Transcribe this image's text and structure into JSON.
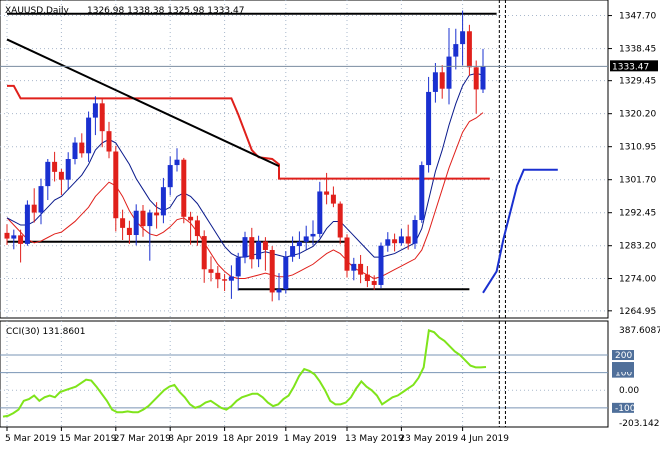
{
  "header": {
    "symbol": "XAUUSD,Daily",
    "ohlc": "1326.98 1338.38 1325.98 1333.47"
  },
  "chart_data": [
    {
      "type": "candlestick",
      "title": "XAUUSD,Daily",
      "ylim": [
        1263.5,
        1351.5
      ],
      "y_ticks": [
        1347.7,
        1338.45,
        1329.45,
        1320.2,
        1310.95,
        1301.7,
        1292.45,
        1283.2,
        1274.0,
        1264.95
      ],
      "y_tick_labels": [
        "1347.70",
        "1338.45",
        "1329.45",
        "1320.20",
        "1310.95",
        "1301.70",
        "1292.45",
        "1283.20",
        "1274.00",
        "1264.95"
      ],
      "current_price": 1333.47,
      "current_price_label": "1333.47",
      "x_labels": [
        "5 Mar 2019",
        "15 Mar 2019",
        "27 Mar 2019",
        "8 Apr 2019",
        "18 Apr 2019",
        "1 May 2019",
        "13 May 2019",
        "23 May 2019",
        "4 Jun 2019"
      ],
      "x_label_bars": [
        0,
        8,
        16,
        24,
        32,
        41,
        50,
        58,
        67
      ],
      "grid": true,
      "candles": [
        [
          1286.8,
          1289.2,
          1283.4,
          1285.2
        ],
        [
          1285.2,
          1287.7,
          1282.2,
          1286.1
        ],
        [
          1286.1,
          1287.7,
          1278.5,
          1283.7
        ],
        [
          1283.7,
          1295.9,
          1283.2,
          1294.7
        ],
        [
          1294.7,
          1299.3,
          1289.7,
          1292.5
        ],
        [
          1292.5,
          1302.0,
          1289.2,
          1299.9
        ],
        [
          1299.9,
          1307.5,
          1296.0,
          1306.7
        ],
        [
          1306.7,
          1309.5,
          1301.2,
          1303.9
        ],
        [
          1303.9,
          1304.7,
          1297.4,
          1301.7
        ],
        [
          1301.7,
          1309.4,
          1298.8,
          1307.5
        ],
        [
          1307.5,
          1313.6,
          1306.0,
          1312.1
        ],
        [
          1312.1,
          1314.7,
          1307.9,
          1309.1
        ],
        [
          1309.1,
          1320.8,
          1306.7,
          1319.1
        ],
        [
          1319.1,
          1325.1,
          1314.2,
          1323.1
        ],
        [
          1323.1,
          1324.4,
          1310.8,
          1315.3
        ],
        [
          1315.3,
          1317.9,
          1307.7,
          1309.6
        ],
        [
          1309.6,
          1311.2,
          1287.2,
          1290.9
        ],
        [
          1290.9,
          1293.3,
          1284.8,
          1288.2
        ],
        [
          1288.2,
          1290.2,
          1283.7,
          1286.2
        ],
        [
          1286.2,
          1294.8,
          1283.3,
          1293.0
        ],
        [
          1293.0,
          1294.6,
          1285.7,
          1288.7
        ],
        [
          1288.7,
          1293.3,
          1279.0,
          1292.5
        ],
        [
          1292.5,
          1295.4,
          1288.0,
          1291.7
        ],
        [
          1291.7,
          1302.2,
          1289.5,
          1299.6
        ],
        [
          1299.6,
          1308.2,
          1297.3,
          1305.8
        ],
        [
          1305.8,
          1310.5,
          1304.0,
          1307.3
        ],
        [
          1307.3,
          1307.8,
          1289.5,
          1291.3
        ],
        [
          1291.3,
          1292.7,
          1283.5,
          1290.3
        ],
        [
          1290.3,
          1291.6,
          1283.2,
          1285.9
        ],
        [
          1285.9,
          1287.5,
          1272.8,
          1276.6
        ],
        [
          1276.6,
          1280.2,
          1273.2,
          1275.6
        ],
        [
          1275.6,
          1277.5,
          1271.3,
          1273.8
        ],
        [
          1273.8,
          1275.3,
          1270.5,
          1273.4
        ],
        [
          1273.4,
          1277.7,
          1268.3,
          1274.6
        ],
        [
          1274.6,
          1281.2,
          1270.6,
          1279.9
        ],
        [
          1279.9,
          1287.1,
          1278.3,
          1285.6
        ],
        [
          1285.6,
          1288.2,
          1276.8,
          1279.4
        ],
        [
          1279.4,
          1286.0,
          1277.2,
          1284.4
        ],
        [
          1284.4,
          1285.6,
          1276.2,
          1282.0
        ],
        [
          1282.0,
          1283.1,
          1267.6,
          1270.1
        ],
        [
          1270.1,
          1275.5,
          1267.9,
          1271.0
        ],
        [
          1271.0,
          1281.7,
          1269.8,
          1280.1
        ],
        [
          1280.1,
          1285.8,
          1278.7,
          1283.1
        ],
        [
          1283.1,
          1287.2,
          1279.5,
          1284.3
        ],
        [
          1284.3,
          1288.8,
          1282.1,
          1285.8
        ],
        [
          1285.8,
          1290.3,
          1283.4,
          1286.5
        ],
        [
          1286.5,
          1301.1,
          1285.5,
          1298.4
        ],
        [
          1298.4,
          1303.6,
          1294.8,
          1297.5
        ],
        [
          1297.5,
          1299.8,
          1294.0,
          1295.0
        ],
        [
          1295.0,
          1295.6,
          1283.6,
          1285.5
        ],
        [
          1285.5,
          1286.4,
          1274.3,
          1276.2
        ],
        [
          1276.2,
          1279.8,
          1273.5,
          1278.1
        ],
        [
          1278.1,
          1280.6,
          1272.7,
          1275.1
        ],
        [
          1275.1,
          1277.5,
          1271.6,
          1273.3
        ],
        [
          1273.3,
          1274.9,
          1270.8,
          1272.2
        ],
        [
          1272.2,
          1284.1,
          1271.3,
          1283.2
        ],
        [
          1283.2,
          1287.0,
          1281.5,
          1285.0
        ],
        [
          1285.0,
          1286.6,
          1281.6,
          1283.9
        ],
        [
          1283.9,
          1287.9,
          1283.2,
          1285.8
        ],
        [
          1285.8,
          1289.1,
          1282.1,
          1283.8
        ],
        [
          1283.8,
          1291.7,
          1282.3,
          1290.4
        ],
        [
          1290.4,
          1306.8,
          1289.6,
          1305.8
        ],
        [
          1305.8,
          1330.5,
          1303.7,
          1326.3
        ],
        [
          1326.3,
          1334.4,
          1323.3,
          1331.8
        ],
        [
          1331.8,
          1333.8,
          1324.4,
          1327.2
        ],
        [
          1327.2,
          1344.2,
          1322.8,
          1336.2
        ],
        [
          1336.2,
          1344.0,
          1332.6,
          1339.7
        ],
        [
          1339.7,
          1349.1,
          1333.7,
          1343.3
        ],
        [
          1343.3,
          1345.1,
          1330.8,
          1333.2
        ],
        [
          1333.2,
          1335.1,
          1320.2,
          1327.0
        ],
        [
          1326.98,
          1338.38,
          1325.98,
          1333.47
        ]
      ],
      "ma_fast": [
        1291.0,
        1290.0,
        1289.0,
        1289.0,
        1290.0,
        1292.0,
        1294.0,
        1296.0,
        1297.0,
        1299.0,
        1301.0,
        1303.0,
        1306.0,
        1310.0,
        1312.0,
        1313.0,
        1312.0,
        1309.0,
        1306.0,
        1302.0,
        1299.0,
        1296.0,
        1294.0,
        1293.0,
        1294.0,
        1297.0,
        1298.0,
        1297.0,
        1295.0,
        1292.0,
        1289.0,
        1286.0,
        1283.0,
        1281.0,
        1280.0,
        1280.0,
        1280.5,
        1281.0,
        1281.5,
        1281.0,
        1280.5,
        1280.0,
        1280.5,
        1281.0,
        1282.0,
        1283.0,
        1285.0,
        1288.0,
        1290.0,
        1290.0,
        1288.0,
        1286.0,
        1284.0,
        1282.0,
        1280.0,
        1280.0,
        1280.5,
        1281.0,
        1282.0,
        1283.0,
        1284.0,
        1288.0,
        1296.0,
        1304.0,
        1310.0,
        1317.0,
        1323.0,
        1328.0,
        1331.0,
        1331.5,
        1331.0
      ],
      "ma_slow": [
        1291.0,
        1289.0,
        1287.0,
        1285.0,
        1284.0,
        1284.5,
        1285.5,
        1286.5,
        1287.0,
        1288.5,
        1290.0,
        1292.0,
        1294.0,
        1297.0,
        1299.0,
        1301.0,
        1300.0,
        1297.0,
        1293.0,
        1290.0,
        1288.0,
        1286.5,
        1286.0,
        1287.0,
        1288.5,
        1290.5,
        1291.0,
        1289.5,
        1287.0,
        1284.0,
        1281.0,
        1278.0,
        1276.0,
        1274.5,
        1274.0,
        1274.0,
        1274.5,
        1275.0,
        1275.5,
        1275.0,
        1274.5,
        1274.5,
        1275.0,
        1276.0,
        1277.0,
        1278.0,
        1279.5,
        1281.0,
        1282.0,
        1281.0,
        1279.0,
        1277.0,
        1276.0,
        1275.0,
        1274.0,
        1274.5,
        1275.5,
        1276.5,
        1277.5,
        1278.5,
        1279.5,
        1282.0,
        1287.0,
        1293.0,
        1299.0,
        1305.0,
        1310.0,
        1315.0,
        1318.0,
        1319.0,
        1320.5
      ],
      "channel_red": [
        [
          0,
          1328.0
        ],
        [
          1,
          1328.0
        ],
        [
          2,
          1324.5
        ],
        [
          6,
          1324.5
        ],
        [
          33,
          1324.5
        ],
        [
          34,
          1320.0
        ],
        [
          36,
          1310.0
        ],
        [
          37,
          1308.0
        ],
        [
          39,
          1307.5
        ],
        [
          40,
          1306.0
        ],
        [
          40,
          1302.0
        ],
        [
          71,
          1302.0
        ]
      ],
      "trendline_black": [
        [
          0,
          1341.0
        ],
        [
          40,
          1305.5
        ]
      ],
      "ma_blue_extra": [
        [
          70,
          1270.0
        ],
        [
          72,
          1276.0
        ],
        [
          73,
          1285.0
        ],
        [
          75,
          1300.0
        ],
        [
          76,
          1304.5
        ],
        [
          81,
          1304.5
        ]
      ],
      "horizontal_lines": [
        {
          "from": 0,
          "to": 72,
          "y": 1348.2
        },
        {
          "from": 0,
          "to": 50,
          "y": 1284.3
        },
        {
          "from": 34,
          "to": 68,
          "y": 1271.0
        }
      ],
      "vertical_dashed_bars": [
        72.4,
        73.3
      ]
    },
    {
      "type": "line",
      "title": "CCI(30) 131.8601",
      "indicator": "CCI(30)",
      "current_value": 131.8601,
      "ylim": [
        -203.1423,
        387.6087
      ],
      "y_tick_labels": [
        "387.6087",
        "200",
        "100",
        "0.00",
        "-100",
        "-203.1423"
      ],
      "levels": [
        200,
        100,
        -100
      ],
      "values": [
        -150,
        -145,
        -130,
        -110,
        -60,
        -50,
        -30,
        -60,
        -40,
        -30,
        -40,
        -10,
        0,
        10,
        20,
        40,
        60,
        55,
        20,
        -20,
        -60,
        -110,
        -125,
        -125,
        -120,
        -125,
        -125,
        -110,
        -90,
        -60,
        -30,
        0,
        20,
        30,
        -10,
        -40,
        -80,
        -100,
        -90,
        -70,
        -60,
        -80,
        -100,
        -110,
        -90,
        -60,
        -40,
        -30,
        -20,
        -20,
        -40,
        -70,
        -90,
        -80,
        -50,
        -30,
        20,
        80,
        120,
        110,
        90,
        50,
        0,
        -60,
        -80,
        -80,
        -70,
        -40,
        10,
        50,
        20,
        0,
        -30,
        -80,
        -60,
        -40,
        -30,
        -10,
        10,
        30,
        70,
        130,
        340,
        330,
        300,
        280,
        250,
        220,
        200,
        170,
        140,
        130,
        130,
        131.86
      ]
    }
  ]
}
